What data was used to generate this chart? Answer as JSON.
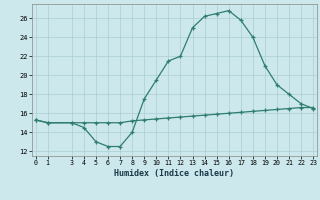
{
  "xlabel": "Humidex (Indice chaleur)",
  "x": [
    0,
    1,
    3,
    4,
    5,
    6,
    7,
    8,
    9,
    10,
    11,
    12,
    13,
    14,
    15,
    16,
    17,
    18,
    19,
    20,
    21,
    22,
    23
  ],
  "y_main": [
    15.3,
    15.0,
    15.0,
    14.5,
    13.0,
    12.5,
    12.5,
    14.0,
    17.5,
    19.5,
    21.5,
    22.0,
    25.0,
    26.2,
    26.5,
    26.8,
    25.8,
    24.0,
    21.0,
    19.0,
    18.0,
    17.0,
    16.5
  ],
  "y_flat": [
    15.3,
    15.0,
    15.0,
    15.0,
    15.0,
    15.0,
    15.0,
    15.2,
    15.3,
    15.4,
    15.5,
    15.6,
    15.7,
    15.8,
    15.9,
    16.0,
    16.1,
    16.2,
    16.3,
    16.4,
    16.5,
    16.6,
    16.6
  ],
  "line_color": "#2e7d6e",
  "bg_color": "#cce8ec",
  "grid_color": "#aacdd4",
  "ylim": [
    11.5,
    27.5
  ],
  "yticks": [
    12,
    14,
    16,
    18,
    20,
    22,
    24,
    26
  ],
  "xlim": [
    -0.3,
    23.3
  ],
  "xticks": [
    0,
    1,
    3,
    4,
    5,
    6,
    7,
    8,
    9,
    10,
    11,
    12,
    13,
    14,
    15,
    16,
    17,
    18,
    19,
    20,
    21,
    22,
    23
  ]
}
